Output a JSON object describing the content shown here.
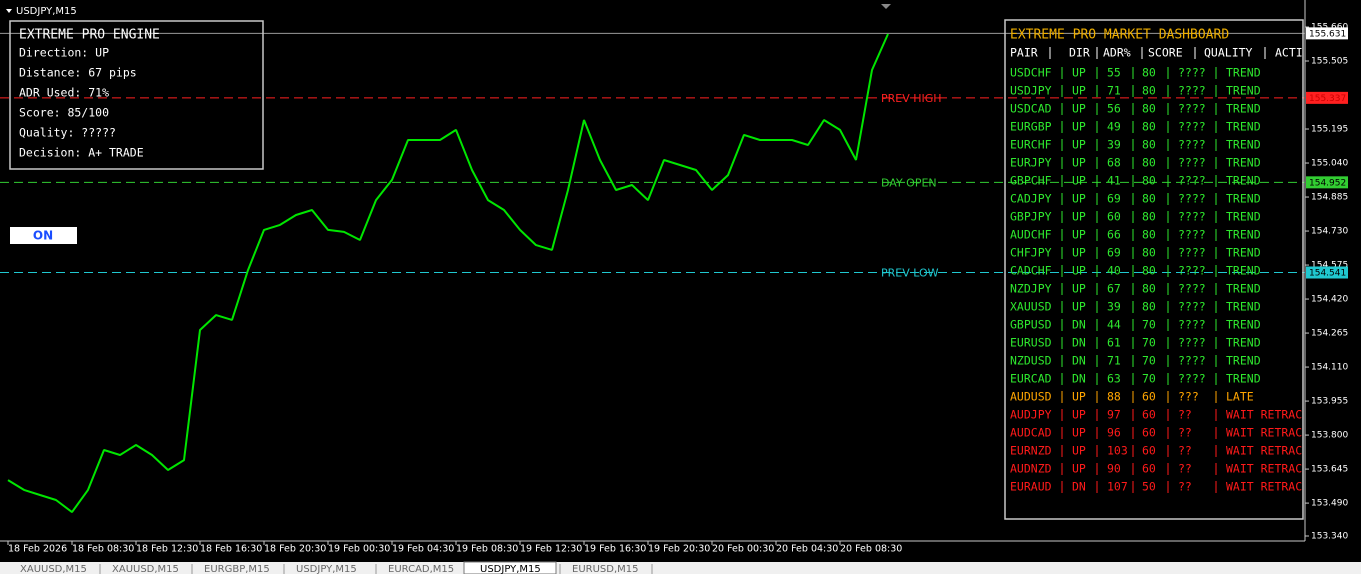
{
  "window_title": "USDJPY,M15",
  "chart_data": {
    "type": "line",
    "x_labels": [
      "18 Feb 2026",
      "18 Feb 08:30",
      "18 Feb 12:30",
      "18 Feb 16:30",
      "18 Feb 20:30",
      "19 Feb 00:30",
      "19 Feb 04:30",
      "19 Feb 08:30",
      "19 Feb 12:30",
      "19 Feb 16:30",
      "19 Feb 20:30",
      "20 Feb 00:30",
      "20 Feb 04:30",
      "20 Feb 08:30"
    ],
    "series": [
      {
        "color": "#00e600",
        "values": [
          153.595,
          153.55,
          153.527,
          153.504,
          153.449,
          153.55,
          153.732,
          153.709,
          153.755,
          153.709,
          153.641,
          153.686,
          154.279,
          154.347,
          154.325,
          154.552,
          154.735,
          154.758,
          154.803,
          154.826,
          154.735,
          154.726,
          154.689,
          154.871,
          154.963,
          155.145,
          155.145,
          155.145,
          155.191,
          155.008,
          154.871,
          154.826,
          154.735,
          154.666,
          154.644,
          154.917,
          155.236,
          155.054,
          154.917,
          154.94,
          154.871,
          155.054,
          155.031,
          155.008,
          154.917,
          154.985,
          155.168,
          155.145,
          155.145,
          155.145,
          155.122,
          155.236,
          155.191,
          155.054,
          155.464,
          155.628
        ]
      }
    ],
    "ylim": [
      153.34,
      155.66
    ],
    "yticks": [
      {
        "value": 155.66,
        "label": "155.660"
      },
      155.505,
      155.195,
      {
        "value": 155.04,
        "label": "155.040"
      },
      154.885,
      {
        "value": 154.73,
        "label": "154.730"
      },
      154.575,
      {
        "value": 154.42,
        "label": "154.420"
      },
      154.265,
      {
        "value": 154.11,
        "label": "154.110"
      },
      153.955,
      {
        "value": 153.8,
        "label": "153.800"
      },
      153.645,
      {
        "value": 153.49,
        "label": "153.490"
      },
      {
        "value": 153.34,
        "label": "153.340"
      }
    ],
    "current_price": 155.631,
    "levels": [
      {
        "name": "PREV HIGH",
        "value": 155.337,
        "color": "#ff2020"
      },
      {
        "name": "DAY OPEN",
        "value": 154.952,
        "color": "#32cd32"
      },
      {
        "name": "PREV LOW",
        "value": 154.541,
        "color": "#20c8d0"
      }
    ]
  },
  "engine": {
    "title": "EXTREME PRO ENGINE",
    "lines": [
      "Direction: UP",
      "Distance: 67 pips",
      "ADR Used: 71%",
      "Score: 85/100",
      "Quality: ?????",
      "Decision: A+ TRADE"
    ]
  },
  "toggle": "ON",
  "dashboard": {
    "title": "EXTREME PRO MARKET DASHBOARD",
    "columns": [
      "PAIR",
      "DIR",
      "ADR%",
      "SCORE",
      "QUALITY",
      "ACTION"
    ],
    "rows": [
      {
        "pair": "USDCHF",
        "dir": "UP",
        "adr": 55,
        "score": 80,
        "quality": "????",
        "action": "TREND",
        "color": "#2ee82e"
      },
      {
        "pair": "USDJPY",
        "dir": "UP",
        "adr": 71,
        "score": 80,
        "quality": "????",
        "action": "TREND",
        "color": "#2ee82e"
      },
      {
        "pair": "USDCAD",
        "dir": "UP",
        "adr": 56,
        "score": 80,
        "quality": "????",
        "action": "TREND",
        "color": "#2ee82e"
      },
      {
        "pair": "EURGBP",
        "dir": "UP",
        "adr": 49,
        "score": 80,
        "quality": "????",
        "action": "TREND",
        "color": "#2ee82e"
      },
      {
        "pair": "EURCHF",
        "dir": "UP",
        "adr": 39,
        "score": 80,
        "quality": "????",
        "action": "TREND",
        "color": "#2ee82e"
      },
      {
        "pair": "EURJPY",
        "dir": "UP",
        "adr": 68,
        "score": 80,
        "quality": "????",
        "action": "TREND",
        "color": "#2ee82e"
      },
      {
        "pair": "GBPCHF",
        "dir": "UP",
        "adr": 41,
        "score": 80,
        "quality": "????",
        "action": "TREND",
        "color": "#2ee82e"
      },
      {
        "pair": "CADJPY",
        "dir": "UP",
        "adr": 69,
        "score": 80,
        "quality": "????",
        "action": "TREND",
        "color": "#2ee82e"
      },
      {
        "pair": "GBPJPY",
        "dir": "UP",
        "adr": 60,
        "score": 80,
        "quality": "????",
        "action": "TREND",
        "color": "#2ee82e"
      },
      {
        "pair": "AUDCHF",
        "dir": "UP",
        "adr": 66,
        "score": 80,
        "quality": "????",
        "action": "TREND",
        "color": "#2ee82e"
      },
      {
        "pair": "CHFJPY",
        "dir": "UP",
        "adr": 69,
        "score": 80,
        "quality": "????",
        "action": "TREND",
        "color": "#2ee82e"
      },
      {
        "pair": "CADCHF",
        "dir": "UP",
        "adr": 40,
        "score": 80,
        "quality": "????",
        "action": "TREND",
        "color": "#2ee82e"
      },
      {
        "pair": "NZDJPY",
        "dir": "UP",
        "adr": 67,
        "score": 80,
        "quality": "????",
        "action": "TREND",
        "color": "#2ee82e"
      },
      {
        "pair": "XAUUSD",
        "dir": "UP",
        "adr": 39,
        "score": 80,
        "quality": "????",
        "action": "TREND",
        "color": "#2ee82e"
      },
      {
        "pair": "GBPUSD",
        "dir": "DN",
        "adr": 44,
        "score": 70,
        "quality": "????",
        "action": "TREND",
        "color": "#2ee82e"
      },
      {
        "pair": "EURUSD",
        "dir": "DN",
        "adr": 61,
        "score": 70,
        "quality": "????",
        "action": "TREND",
        "color": "#2ee82e"
      },
      {
        "pair": "NZDUSD",
        "dir": "DN",
        "adr": 71,
        "score": 70,
        "quality": "????",
        "action": "TREND",
        "color": "#2ee82e"
      },
      {
        "pair": "EURCAD",
        "dir": "DN",
        "adr": 63,
        "score": 70,
        "quality": "????",
        "action": "TREND",
        "color": "#2ee82e"
      },
      {
        "pair": "AUDUSD",
        "dir": "UP",
        "adr": 88,
        "score": 60,
        "quality": "???",
        "action": "LATE",
        "color": "#ffa500"
      },
      {
        "pair": "AUDJPY",
        "dir": "UP",
        "adr": 97,
        "score": 60,
        "quality": "??",
        "action": "WAIT RETRACE",
        "color": "#ff1a1a"
      },
      {
        "pair": "AUDCAD",
        "dir": "UP",
        "adr": 96,
        "score": 60,
        "quality": "??",
        "action": "WAIT RETRACE",
        "color": "#ff1a1a"
      },
      {
        "pair": "EURNZD",
        "dir": "UP",
        "adr": 103,
        "score": 60,
        "quality": "??",
        "action": "WAIT RETRACE",
        "color": "#ff1a1a"
      },
      {
        "pair": "AUDNZD",
        "dir": "UP",
        "adr": 90,
        "score": 60,
        "quality": "??",
        "action": "WAIT RETRACE",
        "color": "#ff1a1a"
      },
      {
        "pair": "EURAUD",
        "dir": "DN",
        "adr": 107,
        "score": 50,
        "quality": "??",
        "action": "WAIT RETRACE",
        "color": "#ff1a1a"
      }
    ]
  },
  "tabs": [
    "XAUUSD,M15",
    "XAUUSD,M15",
    "EURGBP,M15",
    "USDJPY,M15",
    "EURCAD,M15",
    "USDJPY,M15",
    "EURUSD,M15"
  ],
  "active_tab": 5
}
